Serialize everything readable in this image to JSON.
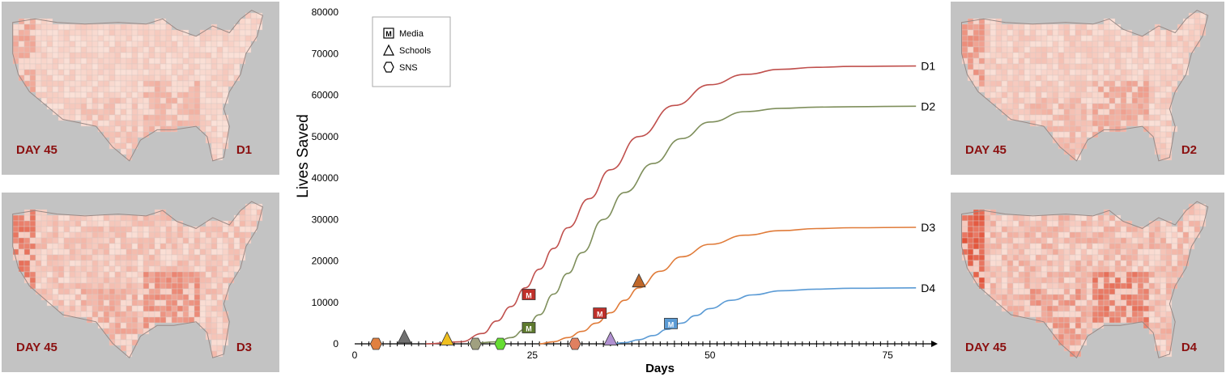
{
  "maps": [
    {
      "day_label": "DAY 45",
      "tag": "D1",
      "intensity": 0.35
    },
    {
      "day_label": "DAY 45",
      "tag": "D3",
      "intensity": 0.6
    },
    {
      "day_label": "DAY 45",
      "tag": "D2",
      "intensity": 0.45
    },
    {
      "day_label": "DAY 45",
      "tag": "D4",
      "intensity": 0.75
    }
  ],
  "colors": {
    "map_background": "#c3c3c3",
    "map_label": "#8b1010",
    "county_light": "#fbe3da",
    "county_dark": "#e0452a"
  },
  "chart_data": {
    "type": "line",
    "title": "",
    "xlabel": "Days",
    "ylabel": "Lives Saved",
    "xlim": [
      0,
      80
    ],
    "ylim": [
      0,
      80000
    ],
    "x_ticks": [
      0,
      25,
      50,
      75
    ],
    "y_ticks": [
      0,
      10000,
      20000,
      30000,
      40000,
      50000,
      60000,
      70000,
      80000
    ],
    "legend": {
      "position": "top-left",
      "entries": [
        {
          "label": "Media",
          "marker": "square-m"
        },
        {
          "label": "Schools",
          "marker": "triangle"
        },
        {
          "label": "SNS",
          "marker": "diamond"
        }
      ]
    },
    "series": [
      {
        "name": "D1",
        "color": "#c0504d",
        "x": [
          10,
          15,
          18,
          20,
          22,
          24,
          26,
          28,
          30,
          33,
          36,
          40,
          45,
          50,
          55,
          60,
          65,
          70,
          79
        ],
        "y": [
          0,
          500,
          2500,
          5500,
          9000,
          13500,
          18000,
          23000,
          28000,
          35000,
          42000,
          50000,
          57500,
          62500,
          65000,
          66200,
          66700,
          66900,
          67000
        ]
      },
      {
        "name": "D2",
        "color": "#7f8f5c",
        "x": [
          16,
          20,
          22,
          24,
          26,
          28,
          30,
          32,
          35,
          38,
          42,
          46,
          50,
          55,
          60,
          65,
          70,
          79
        ],
        "y": [
          0,
          500,
          1500,
          3500,
          7000,
          12000,
          17000,
          22000,
          30000,
          36500,
          43500,
          49500,
          53500,
          56000,
          56800,
          57100,
          57200,
          57300
        ]
      },
      {
        "name": "D3",
        "color": "#e07b39",
        "x": [
          26,
          28,
          30,
          32,
          34,
          36,
          38,
          40,
          43,
          46,
          50,
          55,
          60,
          65,
          70,
          79
        ],
        "y": [
          0,
          500,
          1500,
          3000,
          5000,
          7500,
          10500,
          13500,
          17500,
          21000,
          24000,
          26200,
          27300,
          27800,
          28000,
          28100
        ]
      },
      {
        "name": "D4",
        "color": "#5b9bd5",
        "x": [
          36,
          38,
          40,
          42,
          44,
          46,
          48,
          50,
          53,
          56,
          60,
          65,
          70,
          79
        ],
        "y": [
          0,
          300,
          1000,
          2000,
          3500,
          5000,
          6800,
          8500,
          10500,
          11800,
          12800,
          13200,
          13400,
          13500
        ]
      }
    ],
    "media_markers": [
      {
        "x": 24.5,
        "y": 12000,
        "color": "#c0302a"
      },
      {
        "x": 24.5,
        "y": 4000,
        "color": "#5e7a2e"
      },
      {
        "x": 34.5,
        "y": 7500,
        "color": "#c0302a"
      },
      {
        "x": 44.5,
        "y": 5000,
        "color": "#5b9bd5"
      }
    ],
    "school_markers": [
      {
        "x": 7,
        "y": 1000,
        "color": "#707070"
      },
      {
        "x": 13,
        "y": 500,
        "color": "#f0c020"
      },
      {
        "x": 40,
        "y": 14500,
        "color": "#c0682a"
      },
      {
        "x": 36,
        "y": 500,
        "color": "#b090d0"
      }
    ],
    "sns_markers": [
      {
        "x": 3,
        "y": 0,
        "color": "#e08040"
      },
      {
        "x": 17,
        "y": 0,
        "color": "#a0a080"
      },
      {
        "x": 20.5,
        "y": 0,
        "color": "#66dd33"
      },
      {
        "x": 31,
        "y": 0,
        "color": "#e08060"
      }
    ]
  }
}
